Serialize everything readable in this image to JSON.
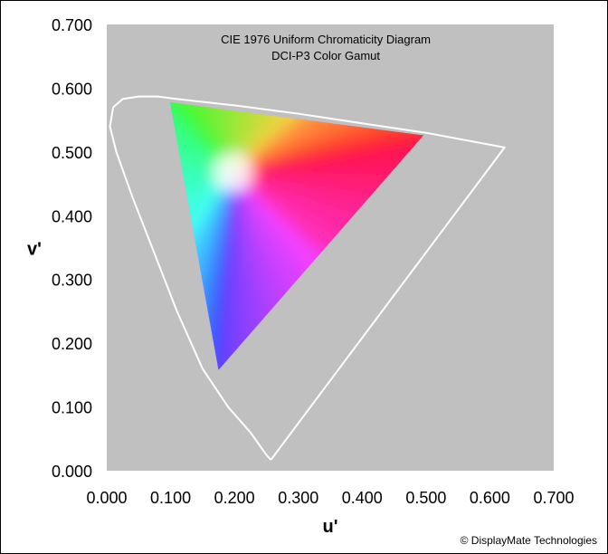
{
  "chart_data": {
    "type": "scatter",
    "title": "CIE 1976 Uniform Chromaticity Diagram",
    "subtitle": "DCI-P3 Color Gamut",
    "xlabel": "u'",
    "ylabel": "v'",
    "xlim": [
      0,
      0.7
    ],
    "ylim": [
      0,
      0.7
    ],
    "x_ticks": [
      "0.000",
      "0.100",
      "0.200",
      "0.300",
      "0.400",
      "0.500",
      "0.600",
      "0.700"
    ],
    "y_ticks": [
      "0.000",
      "0.100",
      "0.200",
      "0.300",
      "0.400",
      "0.500",
      "0.600",
      "0.700"
    ],
    "grid": false,
    "plot_background": "#c0c0c0",
    "locus_color": "#ffffff",
    "spectral_locus": [
      [
        0.257,
        0.017
      ],
      [
        0.25,
        0.025
      ],
      [
        0.225,
        0.06
      ],
      [
        0.19,
        0.1
      ],
      [
        0.15,
        0.16
      ],
      [
        0.11,
        0.25
      ],
      [
        0.075,
        0.34
      ],
      [
        0.04,
        0.43
      ],
      [
        0.015,
        0.5
      ],
      [
        0.005,
        0.54
      ],
      [
        0.01,
        0.57
      ],
      [
        0.025,
        0.583
      ],
      [
        0.05,
        0.587
      ],
      [
        0.08,
        0.587
      ],
      [
        0.11,
        0.583
      ],
      [
        0.2,
        0.573
      ],
      [
        0.3,
        0.56
      ],
      [
        0.4,
        0.545
      ],
      [
        0.5,
        0.53
      ],
      [
        0.623,
        0.507
      ],
      [
        0.257,
        0.017
      ]
    ],
    "gamut_triangle": {
      "red": [
        0.496,
        0.526
      ],
      "green": [
        0.099,
        0.578
      ],
      "blue": [
        0.175,
        0.158
      ],
      "white": [
        0.198,
        0.468
      ]
    },
    "copyright": "© DisplayMate Technologies"
  }
}
